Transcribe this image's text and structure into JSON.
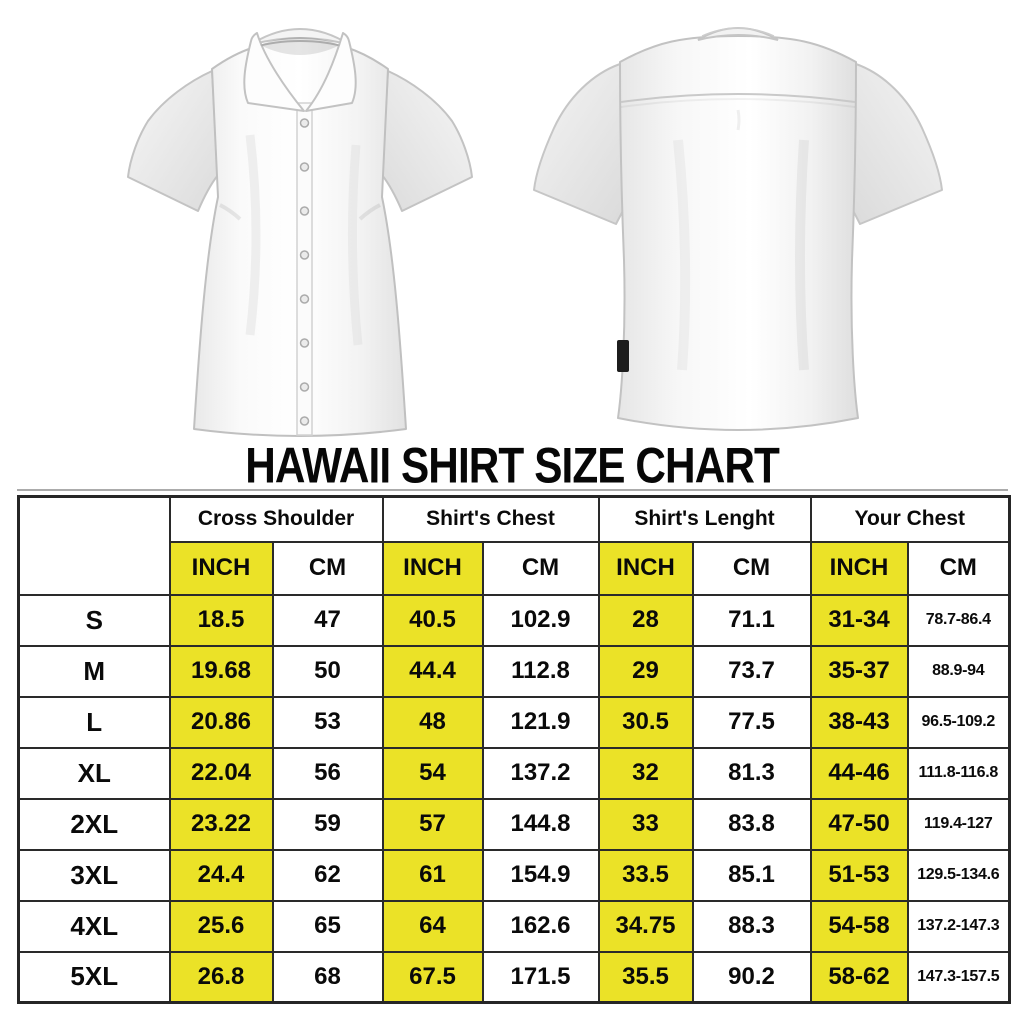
{
  "title": "HAWAII SHIRT SIZE CHART",
  "images": {
    "front_shirt": "white short-sleeve button-up shirt, front view",
    "back_shirt": "white short-sleeve button-up shirt, back view with black hem tag"
  },
  "colors": {
    "highlight_yellow": "#ebe227",
    "border_black": "#2a2a2a",
    "text_black": "#0a0a0a",
    "background": "#ffffff"
  },
  "chart_data": {
    "type": "table",
    "title": "HAWAII SHIRT SIZE CHART",
    "column_groups": [
      "Cross Shoulder",
      "Shirt's Chest",
      "Shirt's Lenght",
      "Your Chest"
    ],
    "unit_headers": [
      "INCH",
      "CM"
    ],
    "highlight_note": "INCH columns highlighted yellow",
    "rows": [
      {
        "size": "S",
        "values": [
          "18.5",
          "47",
          "40.5",
          "102.9",
          "28",
          "71.1",
          "31-34",
          "78.7-86.4"
        ]
      },
      {
        "size": "M",
        "values": [
          "19.68",
          "50",
          "44.4",
          "112.8",
          "29",
          "73.7",
          "35-37",
          "88.9-94"
        ]
      },
      {
        "size": "L",
        "values": [
          "20.86",
          "53",
          "48",
          "121.9",
          "30.5",
          "77.5",
          "38-43",
          "96.5-109.2"
        ]
      },
      {
        "size": "XL",
        "values": [
          "22.04",
          "56",
          "54",
          "137.2",
          "32",
          "81.3",
          "44-46",
          "111.8-116.8"
        ]
      },
      {
        "size": "2XL",
        "values": [
          "23.22",
          "59",
          "57",
          "144.8",
          "33",
          "83.8",
          "47-50",
          "119.4-127"
        ]
      },
      {
        "size": "3XL",
        "values": [
          "24.4",
          "62",
          "61",
          "154.9",
          "33.5",
          "85.1",
          "51-53",
          "129.5-134.6"
        ]
      },
      {
        "size": "4XL",
        "values": [
          "25.6",
          "65",
          "64",
          "162.6",
          "34.75",
          "88.3",
          "54-58",
          "137.2-147.3"
        ]
      },
      {
        "size": "5XL",
        "values": [
          "26.8",
          "68",
          "67.5",
          "171.5",
          "35.5",
          "90.2",
          "58-62",
          "147.3-157.5"
        ]
      }
    ]
  }
}
